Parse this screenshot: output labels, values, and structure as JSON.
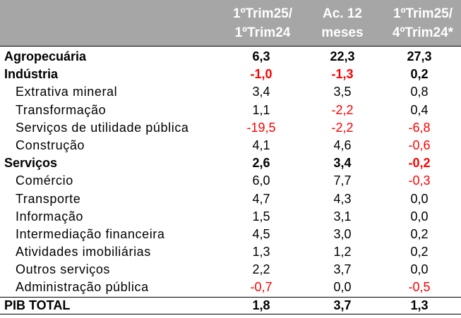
{
  "header": {
    "col1": [
      "1ºTrim25/",
      "1ºTrim24"
    ],
    "col2": [
      "Ac. 12",
      "meses"
    ],
    "col3": [
      "1ºTrim25/",
      "4ºTrim24*"
    ]
  },
  "rows": [
    {
      "label": "Agropecuária",
      "bold": true,
      "sub": false,
      "values": [
        "6,3",
        "22,3",
        "27,3"
      ]
    },
    {
      "label": "Indústria",
      "bold": true,
      "sub": false,
      "values": [
        "-1,0",
        "-1,3",
        "0,2"
      ]
    },
    {
      "label": "Extrativa mineral",
      "bold": false,
      "sub": true,
      "values": [
        "3,4",
        "3,5",
        "0,8"
      ]
    },
    {
      "label": "Transformação",
      "bold": false,
      "sub": true,
      "values": [
        "1,1",
        "-2,2",
        "0,4"
      ]
    },
    {
      "label": "Serviços de utilidade pública",
      "bold": false,
      "sub": true,
      "values": [
        "-19,5",
        "-2,2",
        "-6,8"
      ]
    },
    {
      "label": "Construção",
      "bold": false,
      "sub": true,
      "values": [
        "4,1",
        "4,6",
        "-0,6"
      ]
    },
    {
      "label": "Serviços",
      "bold": true,
      "sub": false,
      "values": [
        "2,6",
        "3,4",
        "-0,2"
      ]
    },
    {
      "label": "Comércio",
      "bold": false,
      "sub": true,
      "values": [
        "6,0",
        "7,7",
        "-0,3"
      ]
    },
    {
      "label": "Transporte",
      "bold": false,
      "sub": true,
      "values": [
        "4,7",
        "4,3",
        "0,0"
      ]
    },
    {
      "label": "Informação",
      "bold": false,
      "sub": true,
      "values": [
        "1,5",
        "3,1",
        "0,0"
      ]
    },
    {
      "label": "Intermediação financeira",
      "bold": false,
      "sub": true,
      "values": [
        "4,5",
        "3,0",
        "0,2"
      ]
    },
    {
      "label": "Atividades imobiliárias",
      "bold": false,
      "sub": true,
      "values": [
        "1,3",
        "1,2",
        "0,2"
      ]
    },
    {
      "label": "Outros serviços",
      "bold": false,
      "sub": true,
      "values": [
        "2,2",
        "3,7",
        "0,0"
      ]
    },
    {
      "label": "Administração pública",
      "bold": false,
      "sub": true,
      "values": [
        "-0,7",
        "0,0",
        "-0,5"
      ]
    },
    {
      "label": "PIB TOTAL",
      "bold": true,
      "sub": false,
      "total": true,
      "values": [
        "1,8",
        "3,7",
        "1,3"
      ]
    }
  ],
  "colors": {
    "header_bg": "#a6a6a6",
    "header_text": "#ffffff",
    "negative": "#ff0000",
    "text": "#000000"
  }
}
